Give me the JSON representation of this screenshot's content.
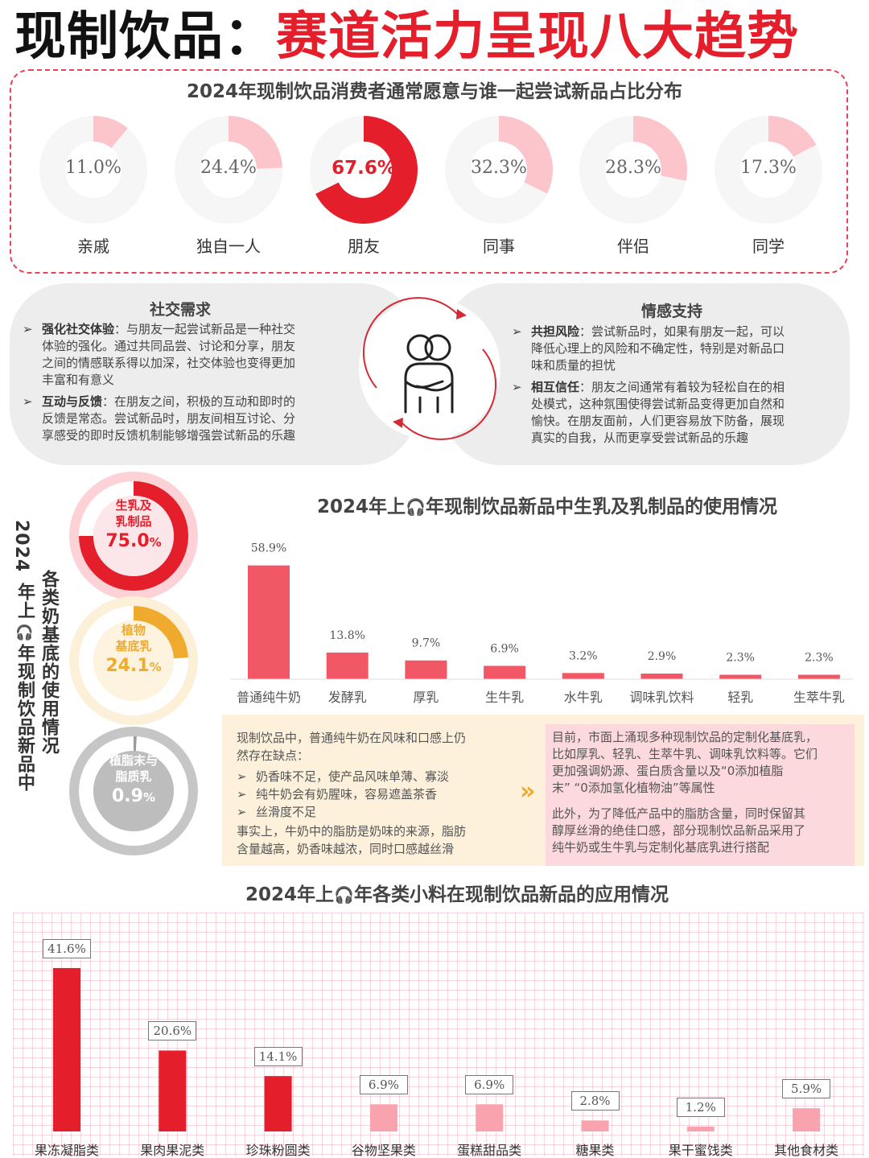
{
  "header": {
    "title_part1": "现制饮品：",
    "title_part2": "赛道活力呈现八大趋势"
  },
  "companions": {
    "title": "2024年现制饮品消费者通常愿意与谁一起尝试新品占比分布",
    "items": [
      {
        "label": "亲戚",
        "value": 11.0,
        "display": "11.0%"
      },
      {
        "label": "独自一人",
        "value": 24.4,
        "display": "24.4%"
      },
      {
        "label": "朋友",
        "value": 67.6,
        "display": "67.6%"
      },
      {
        "label": "同事",
        "value": 32.3,
        "display": "32.3%"
      },
      {
        "label": "伴侣",
        "value": 28.3,
        "display": "28.3%"
      },
      {
        "label": "同学",
        "value": 17.3,
        "display": "17.3%"
      }
    ]
  },
  "social": {
    "title": "社交需求",
    "items": [
      {
        "head": "强化社交体验",
        "sep": "：",
        "lines": [
          "与朋友一起尝试新品是一种社交",
          "体验的强化。通过共同品尝、讨论和分享，朋友",
          "之间的情感联系得以加深，社交体验也变得更加",
          "丰富和有意义"
        ]
      },
      {
        "head": "互动与反馈",
        "sep": "：",
        "lines": [
          "在朋友之间，积极的互动和即时的",
          "反馈是常态。尝试新品时，朋友间相互讨论、分",
          "享感受的即时反馈机制能够增强尝试新品的乐趣"
        ]
      }
    ]
  },
  "emotion": {
    "title": "情感支持",
    "items": [
      {
        "head": "共担风险",
        "sep": "：",
        "lines": [
          "尝试新品时，如果有朋友一起，可以",
          "降低心理上的风险和不确定性，特别是对新品口",
          "味和质量的担忧"
        ]
      },
      {
        "head": "相互信任",
        "sep": "：",
        "lines": [
          "朋友之间通常有着较为轻松自在的相",
          "处模式，这种氛围使得尝试新品变得更加自然和",
          "愉快。在朋友面前，人们更容易放下防备，展现",
          "真实的自我，从而更享受尝试新品的乐趣"
        ]
      }
    ],
    "icon": "hugging-people-icon"
  },
  "milk_base": {
    "vertical_title_1": "2024",
    "vertical_title_2": "年上",
    "vertical_title_3": "年现制饮品新品中",
    "vertical_title_4": "各类奶基底的使用情况",
    "pies": [
      {
        "label_1": "生乳及",
        "label_2": "乳制品",
        "value": 75.0,
        "num": "75.0",
        "unit": "%",
        "color": "#e41e2b"
      },
      {
        "label_1": "植物",
        "label_2": "基底乳",
        "value": 24.1,
        "num": "24.1",
        "unit": "%",
        "color": "#f0ab2e"
      },
      {
        "label_1": "植脂末与",
        "label_2": "脂质乳",
        "value": 0.9,
        "num": "0.9",
        "unit": "%",
        "color": "#9a9a9a"
      }
    ]
  },
  "chart_data": [
    {
      "type": "bar",
      "title_part1": "2024年上",
      "title_part2": "年现制饮品新品中生乳及乳制品的使用情况",
      "categories": [
        "普通纯牛奶",
        "发酵乳",
        "厚乳",
        "生牛乳",
        "水牛乳",
        "调味乳饮料",
        "轻乳",
        "生萃牛乳"
      ],
      "values": [
        58.9,
        13.8,
        9.7,
        6.9,
        3.2,
        2.9,
        2.3,
        2.3
      ],
      "labels": [
        "58.9%",
        "13.8%",
        "9.7%",
        "6.9%",
        "3.2%",
        "2.9%",
        "2.3%",
        "2.3%"
      ],
      "ylim": [
        0,
        60
      ],
      "color": "#f25766"
    },
    {
      "type": "bar",
      "title_part1": "2024年上",
      "title_part2": "年各类小料在现制饮品新品的应用情况",
      "categories": [
        "果冻凝脂类",
        "果肉果泥类",
        "珍珠粉圆类",
        "谷物坚果类",
        "蛋糕甜品类",
        "糖果类",
        "果干蜜饯类",
        "其他食材类"
      ],
      "values": [
        41.6,
        20.6,
        14.1,
        6.9,
        6.9,
        2.8,
        1.2,
        5.9
      ],
      "labels": [
        "41.6%",
        "20.6%",
        "14.1%",
        "6.9%",
        "6.9%",
        "2.8%",
        "1.2%",
        "5.9%"
      ],
      "ylim": [
        0,
        42
      ],
      "colors": [
        "#e41e2b",
        "#e41e2b",
        "#e41e2b",
        "#f8a3ae",
        "#f8a3ae",
        "#f8a3ae",
        "#f8a3ae",
        "#f8a3ae"
      ]
    }
  ],
  "milk_notes": {
    "left_intro_1": "现制饮品中，普通纯牛奶在风味和口感上仍",
    "left_intro_2": "然存在缺点：",
    "left_bullets": [
      "奶香味不足，使产品风味单薄、寡淡",
      "纯牛奶会有奶腥味，容易遮盖茶香",
      "丝滑度不足"
    ],
    "left_outro_1": "事实上，牛奶中的脂肪是奶味的来源，脂肪",
    "left_outro_2": "含量越高，奶香味越浓，同时口感越丝滑",
    "right_p1": [
      "目前，市面上涌现多种现制饮品的定制化基底乳，",
      "比如厚乳、轻乳、生萃牛乳、调味乳饮料等。它们",
      "更加强调奶源、蛋白质含量以及“0添加植脂",
      "末” “0添加氢化植物油”等属性"
    ],
    "right_p2": [
      "此外，为了降低产品中的脂肪含量，同时保留其",
      "醇厚丝滑的绝佳口感，部分现制饮品新品采用了",
      "纯牛奶或生牛乳与定制化基底乳进行搭配"
    ],
    "arrow": "»"
  }
}
